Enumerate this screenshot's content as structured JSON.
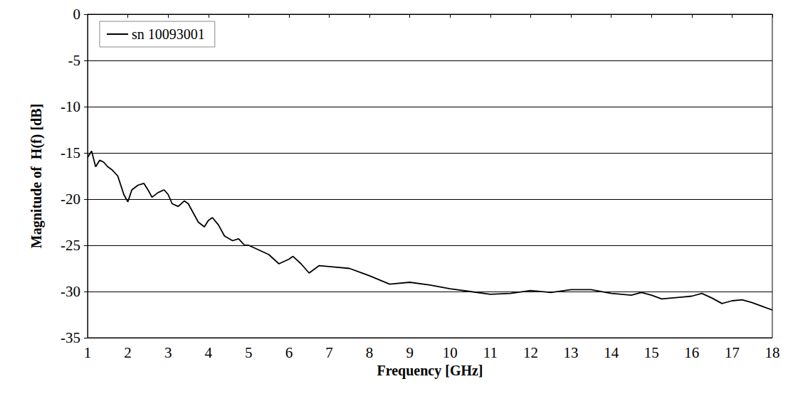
{
  "chart_data": {
    "type": "line",
    "xlabel": "Frequency [GHz]",
    "ylabel": "Magnitude of  H(f) [dB]",
    "x": [
      1.0,
      1.1,
      1.2,
      1.3,
      1.4,
      1.5,
      1.6,
      1.75,
      1.9,
      2.0,
      2.1,
      2.25,
      2.4,
      2.5,
      2.6,
      2.75,
      2.9,
      3.0,
      3.1,
      3.25,
      3.4,
      3.5,
      3.75,
      3.9,
      4.0,
      4.1,
      4.25,
      4.4,
      4.6,
      4.75,
      4.9,
      5.0,
      5.25,
      5.5,
      5.75,
      6.0,
      6.1,
      6.3,
      6.5,
      6.75,
      7.0,
      7.5,
      8.0,
      8.5,
      9.0,
      9.5,
      10.0,
      10.5,
      11.0,
      11.5,
      12.0,
      12.5,
      13.0,
      13.5,
      14.0,
      14.5,
      14.75,
      15.0,
      15.25,
      15.75,
      16.0,
      16.25,
      16.5,
      16.75,
      17.0,
      17.25,
      17.5,
      17.75,
      18.0
    ],
    "series": [
      {
        "name": "sn 10093001",
        "color": "#000000",
        "values": [
          -15.5,
          -14.8,
          -16.5,
          -15.8,
          -16.0,
          -16.5,
          -16.8,
          -17.5,
          -19.5,
          -20.3,
          -19.0,
          -18.5,
          -18.3,
          -19.0,
          -19.8,
          -19.3,
          -19.0,
          -19.5,
          -20.5,
          -20.8,
          -20.2,
          -20.5,
          -22.5,
          -23.0,
          -22.3,
          -22.0,
          -22.8,
          -24.0,
          -24.5,
          -24.3,
          -25.0,
          -25.0,
          -25.5,
          -26.0,
          -27.0,
          -26.5,
          -26.2,
          -27.0,
          -28.0,
          -27.2,
          -27.3,
          -27.5,
          -28.3,
          -29.2,
          -29.0,
          -29.3,
          -29.7,
          -30.0,
          -30.3,
          -30.2,
          -29.9,
          -30.1,
          -29.8,
          -29.8,
          -30.2,
          -30.4,
          -30.1,
          -30.4,
          -30.8,
          -30.6,
          -30.5,
          -30.2,
          -30.7,
          -31.3,
          -31.0,
          -30.9,
          -31.2,
          -31.6,
          -32.0
        ]
      }
    ],
    "xlim": [
      1,
      18
    ],
    "xticks": [
      1,
      2,
      3,
      4,
      5,
      6,
      7,
      8,
      9,
      10,
      11,
      12,
      13,
      14,
      15,
      16,
      17,
      18
    ],
    "ylim": [
      -35,
      0
    ],
    "yticks": [
      -35,
      -30,
      -25,
      -20,
      -15,
      -10,
      -5,
      0
    ],
    "grid": true,
    "legend": "upper left"
  }
}
